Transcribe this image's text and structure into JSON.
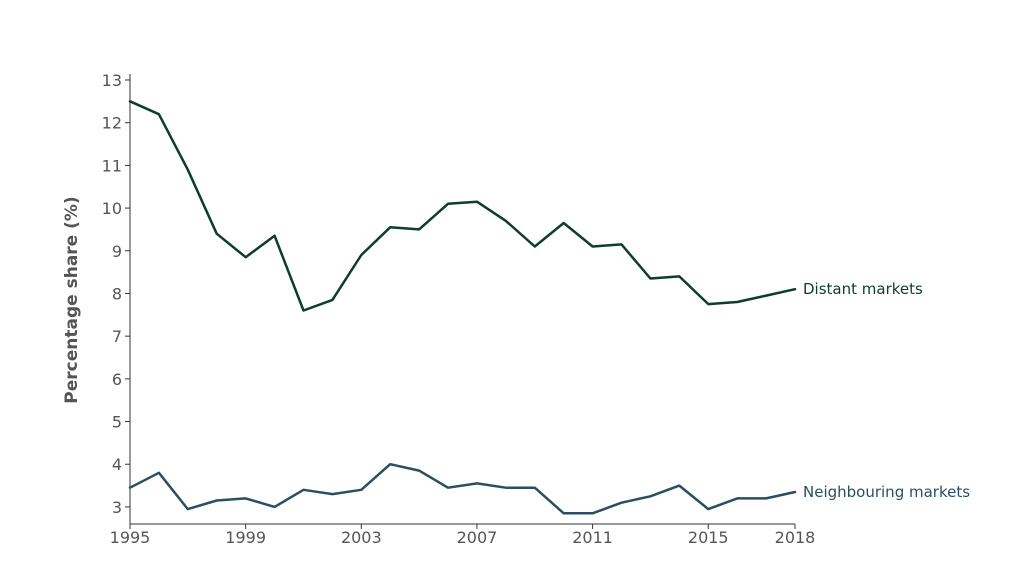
{
  "chart_data": {
    "type": "line",
    "title": "",
    "xlabel": "",
    "ylabel": "Percentage share (%)",
    "x": [
      1995,
      1996,
      1997,
      1998,
      1999,
      2000,
      2001,
      2002,
      2003,
      2004,
      2005,
      2006,
      2007,
      2008,
      2009,
      2010,
      2011,
      2012,
      2013,
      2014,
      2015,
      2016,
      2017,
      2018
    ],
    "xlim": [
      1995,
      2018
    ],
    "ylim": [
      2.6,
      13
    ],
    "xticks": [
      "1995",
      "1999",
      "2003",
      "2007",
      "2011",
      "2015",
      "2018"
    ],
    "yticks": [
      "3",
      "4",
      "5",
      "6",
      "7",
      "8",
      "9",
      "10",
      "11",
      "12",
      "13"
    ],
    "grid": false,
    "legend": "direct labels at line ends",
    "series": [
      {
        "name": "Distant markets",
        "color": "#0d3d2b",
        "values": [
          12.5,
          12.2,
          10.9,
          9.4,
          8.85,
          9.35,
          7.6,
          7.85,
          8.9,
          9.55,
          9.5,
          10.1,
          10.15,
          9.7,
          9.1,
          9.65,
          9.1,
          9.15,
          8.35,
          8.4,
          7.75,
          7.8,
          7.95,
          8.1
        ]
      },
      {
        "name": "Neighbouring markets",
        "color": "#2c4e63",
        "values": [
          3.45,
          3.8,
          2.95,
          3.15,
          3.2,
          3.0,
          3.4,
          3.3,
          3.4,
          4.0,
          3.85,
          3.45,
          3.55,
          3.45,
          3.45,
          2.85,
          2.85,
          3.1,
          3.25,
          3.5,
          2.95,
          3.2,
          3.2,
          3.35
        ]
      }
    ]
  }
}
